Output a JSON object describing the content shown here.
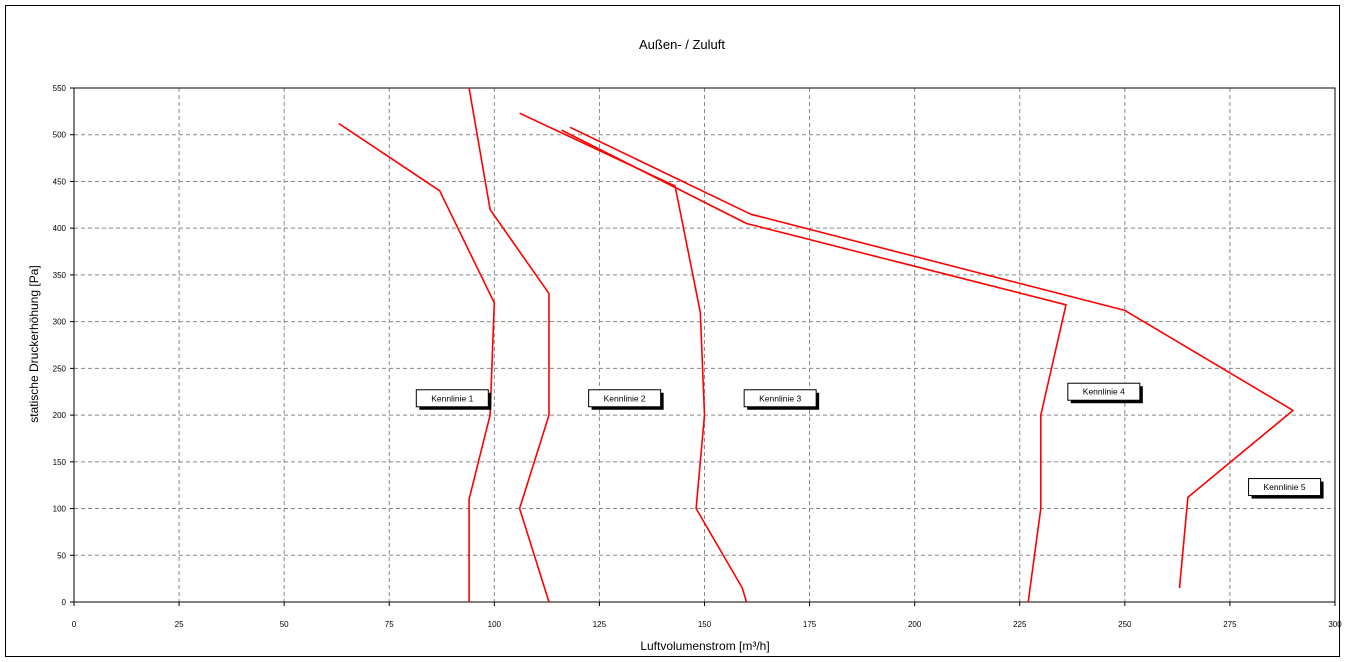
{
  "chart_data": {
    "type": "line",
    "title": "Außen- / Zuluft",
    "xlabel": "Luftvolumenstrom [m³/h]",
    "ylabel": "statische Druckerhöhung [Pa]",
    "xlim": [
      0,
      300
    ],
    "ylim": [
      0,
      550
    ],
    "xticks": [
      0,
      25,
      50,
      75,
      100,
      125,
      150,
      175,
      200,
      225,
      250,
      275,
      300
    ],
    "yticks": [
      0,
      50,
      100,
      150,
      200,
      250,
      300,
      350,
      400,
      450,
      500,
      550
    ],
    "grid": true,
    "line_color": "#ff0000",
    "series": [
      {
        "name": "Kennlinie 1",
        "points": [
          [
            94,
            0
          ],
          [
            94,
            100
          ],
          [
            94,
            110
          ],
          [
            99,
            200
          ],
          [
            100,
            320
          ],
          [
            87,
            440
          ],
          [
            63,
            512
          ]
        ]
      },
      {
        "name": "Kennlinie 2",
        "points": [
          [
            113,
            0
          ],
          [
            106,
            100
          ],
          [
            113,
            200
          ],
          [
            113,
            330
          ],
          [
            99,
            420
          ],
          [
            94,
            550
          ]
        ]
      },
      {
        "name": "Kennlinie 3",
        "points": [
          [
            160,
            0
          ],
          [
            159,
            15
          ],
          [
            148,
            100
          ],
          [
            150,
            200
          ],
          [
            149,
            310
          ],
          [
            143,
            445
          ],
          [
            106,
            523
          ]
        ]
      },
      {
        "name": "Kennlinie 4",
        "points": [
          [
            227,
            0
          ],
          [
            230,
            100
          ],
          [
            230,
            200
          ],
          [
            236,
            318
          ],
          [
            160,
            405
          ],
          [
            116,
            505
          ]
        ]
      },
      {
        "name": "Kennlinie 5",
        "points": [
          [
            263,
            15
          ],
          [
            265,
            112
          ],
          [
            290,
            205
          ],
          [
            250,
            312
          ],
          [
            161,
            415
          ],
          [
            118,
            508
          ]
        ]
      }
    ],
    "annotations": [
      {
        "text": "Kennlinie 1",
        "x": 90,
        "y": 218
      },
      {
        "text": "Kennlinie 2",
        "x": 131,
        "y": 218
      },
      {
        "text": "Kennlinie 3",
        "x": 168,
        "y": 218
      },
      {
        "text": "Kennlinie 4",
        "x": 245,
        "y": 225
      },
      {
        "text": "Kennlinie 5",
        "x": 288,
        "y": 123
      }
    ]
  }
}
